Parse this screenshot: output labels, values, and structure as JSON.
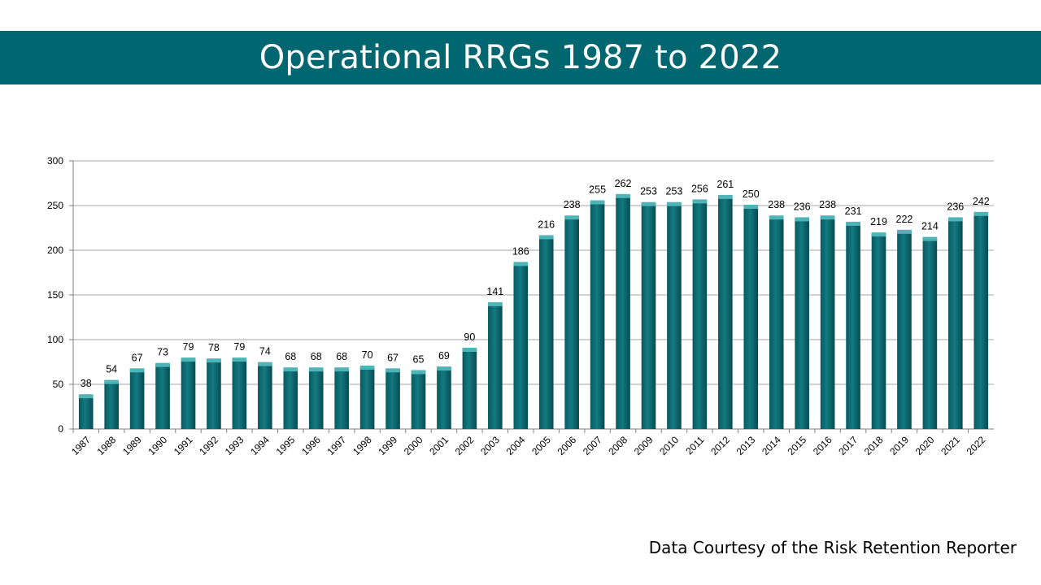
{
  "slide": {
    "title": "Operational RRGs 1987 to 2022",
    "credit": "Data Courtesy of the Risk Retention Reporter"
  },
  "colors": {
    "banner": "#006670",
    "bar": "#0e7076",
    "bar_top": "#4fb4b8",
    "grid": "#a6a6a6"
  },
  "chart_data": {
    "type": "bar",
    "title": "Operational RRGs 1987 to 2022",
    "xlabel": "",
    "ylabel": "",
    "ylim": [
      0,
      300
    ],
    "yticks": [
      0,
      50,
      100,
      150,
      200,
      250,
      300
    ],
    "grid": true,
    "legend": "none",
    "categories": [
      "1987",
      "1988",
      "1989",
      "1990",
      "1991",
      "1992",
      "1993",
      "1994",
      "1995",
      "1996",
      "1997",
      "1998",
      "1999",
      "2000",
      "2001",
      "2002",
      "2003",
      "2004",
      "2005",
      "2006",
      "2007",
      "2008",
      "2009",
      "2010",
      "2011",
      "2012",
      "2013",
      "2014",
      "2015",
      "2016",
      "2017",
      "2018",
      "2019",
      "2020",
      "2021",
      "2022"
    ],
    "values": [
      38,
      54,
      67,
      73,
      79,
      78,
      79,
      74,
      68,
      68,
      68,
      70,
      67,
      65,
      69,
      90,
      141,
      186,
      216,
      238,
      255,
      262,
      253,
      253,
      256,
      261,
      250,
      238,
      236,
      238,
      231,
      219,
      222,
      214,
      236,
      242
    ]
  }
}
